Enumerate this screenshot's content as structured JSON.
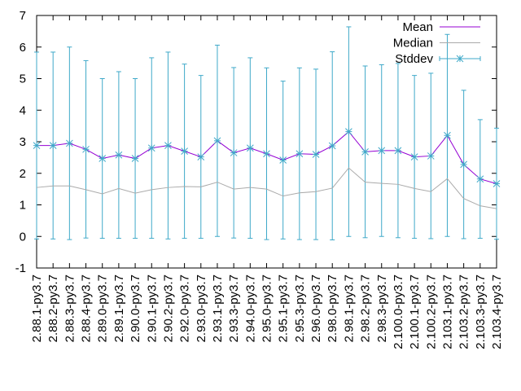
{
  "chart_data": {
    "type": "line",
    "title": "",
    "xlabel": "",
    "ylabel": "",
    "ylim": [
      -1,
      7
    ],
    "yticks": [
      -1,
      0,
      1,
      2,
      3,
      4,
      5,
      6,
      7
    ],
    "grid": false,
    "legend_position": "top-right",
    "categories": [
      "2.88.1-py3.7",
      "2.88.2-py3.7",
      "2.88.3-py3.7",
      "2.88.4-py3.7",
      "2.89.0-py3.7",
      "2.89.1-py3.7",
      "2.90.0-py3.7",
      "2.90.1-py3.7",
      "2.90.2-py3.7",
      "2.92.0-py3.7",
      "2.93.0-py3.7",
      "2.93.1-py3.7",
      "2.93.3-py3.7",
      "2.94.0-py3.7",
      "2.95.0-py3.7",
      "2.95.1-py3.7",
      "2.95.3-py3.7",
      "2.96.0-py3.7",
      "2.98.0-py3.7",
      "2.98.1-py3.7",
      "2.98.2-py3.7",
      "2.98.3-py3.7",
      "2.100.0-py3.7",
      "2.100.1-py3.7",
      "2.100.2-py3.7",
      "2.103.1-py3.7",
      "2.103.2-py3.7",
      "2.103.3-py3.7",
      "2.103.4-py3.7"
    ],
    "series": [
      {
        "name": "Mean",
        "color": "#9400d3",
        "values": [
          2.88,
          2.88,
          2.95,
          2.76,
          2.47,
          2.58,
          2.47,
          2.8,
          2.88,
          2.7,
          2.52,
          3.03,
          2.65,
          2.8,
          2.62,
          2.42,
          2.62,
          2.6,
          2.87,
          3.32,
          2.68,
          2.72,
          2.72,
          2.52,
          2.55,
          3.2,
          2.28,
          1.82,
          1.67
        ]
      },
      {
        "name": "Median",
        "color": "#aaaaaa",
        "values": [
          1.55,
          1.6,
          1.6,
          1.48,
          1.35,
          1.52,
          1.37,
          1.48,
          1.55,
          1.58,
          1.57,
          1.72,
          1.5,
          1.55,
          1.5,
          1.28,
          1.38,
          1.42,
          1.53,
          2.17,
          1.72,
          1.68,
          1.65,
          1.52,
          1.42,
          1.83,
          1.2,
          0.97,
          0.88
        ]
      },
      {
        "name": "Stddev",
        "color": "#3fa9c9",
        "values": [
          2.96,
          2.96,
          3.05,
          2.81,
          2.53,
          2.64,
          2.53,
          2.86,
          2.96,
          2.76,
          2.58,
          3.03,
          2.7,
          2.86,
          2.72,
          2.5,
          2.72,
          2.7,
          2.98,
          3.32,
          2.72,
          2.72,
          2.76,
          2.58,
          2.62,
          3.2,
          2.35,
          1.88,
          1.76
        ]
      }
    ]
  }
}
